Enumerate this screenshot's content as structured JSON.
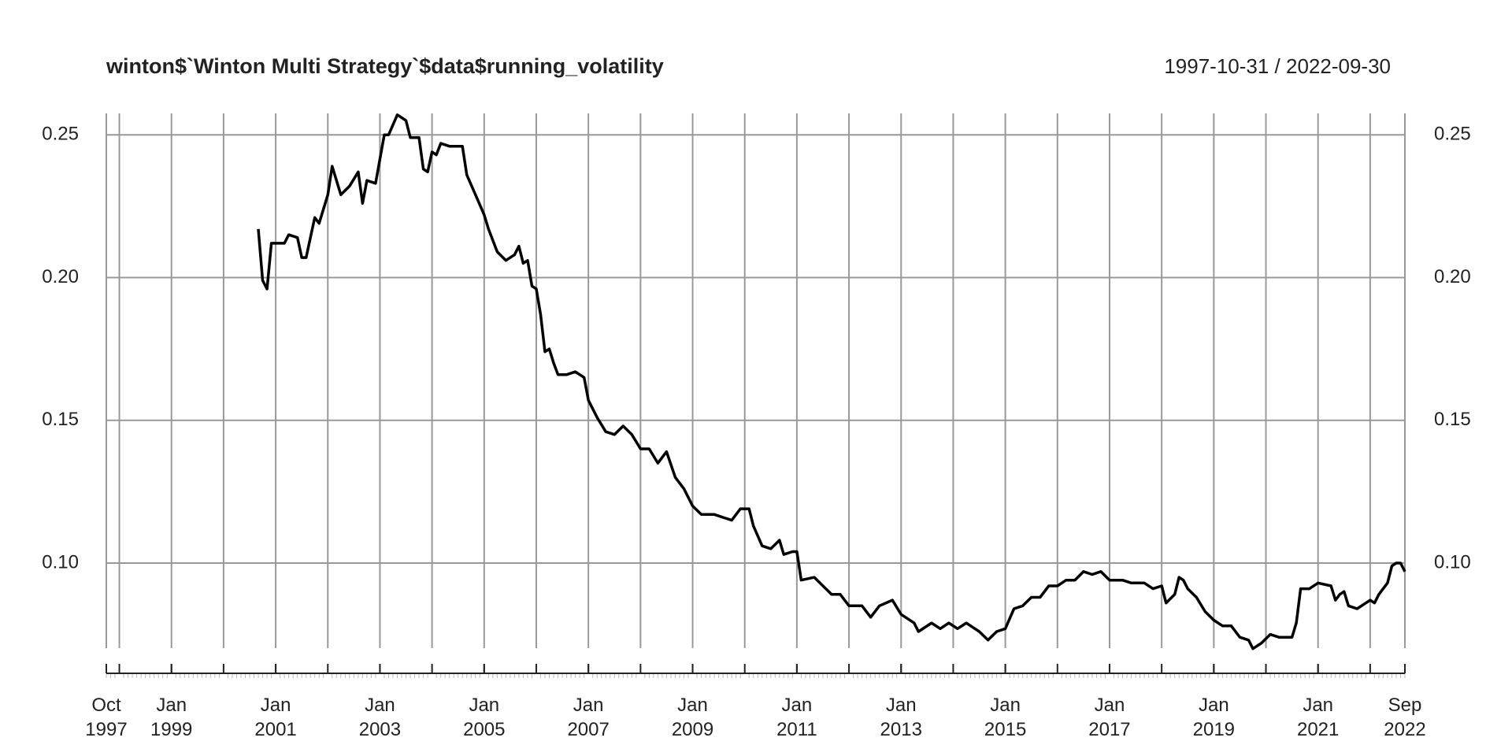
{
  "chart_data": {
    "type": "line",
    "title": "winton$`Winton Multi Strategy`$data$running_volatility",
    "subtitle": "1997-10-31 / 2022-09-30",
    "color": "#000000",
    "grid": true,
    "xlim": [
      "1997-10",
      "2022-09"
    ],
    "ylim": [
      0.0702,
      0.2575
    ],
    "yticks": [
      {
        "value": 0.1,
        "label": "0.10"
      },
      0.15,
      {
        "value": 0.2,
        "label": "0.20"
      },
      0.25
    ],
    "xticks": [
      {
        "value": "1997-10",
        "label": "Oct 1997"
      },
      {
        "value": "1999-01",
        "label": "Jan 1999"
      },
      {
        "value": "2001-01",
        "label": "Jan 2001"
      },
      {
        "value": "2003-01",
        "label": "Jan 2003"
      },
      {
        "value": "2005-01",
        "label": "Jan 2005"
      },
      {
        "value": "2007-01",
        "label": "Jan 2007"
      },
      {
        "value": "2009-01",
        "label": "Jan 2009"
      },
      {
        "value": "2011-01",
        "label": "Jan 2011"
      },
      {
        "value": "2013-01",
        "label": "Jan 2013"
      },
      {
        "value": "2015-01",
        "label": "Jan 2015"
      },
      {
        "value": "2017-01",
        "label": "Jan 2017"
      },
      {
        "value": "2019-01",
        "label": "Jan 2019"
      },
      {
        "value": "2021-01",
        "label": "Jan 2021"
      },
      {
        "value": "2022-09",
        "label": "Sep 2022"
      }
    ],
    "x": [
      "2000-09",
      "2000-10",
      "2000-11",
      "2000-12",
      "2001-03",
      "2001-04",
      "2001-06",
      "2001-07",
      "2001-08",
      "2001-10",
      "2001-11",
      "2002-01",
      "2002-02",
      "2002-04",
      "2002-06",
      "2002-08",
      "2002-09",
      "2002-10",
      "2002-12",
      "2003-02",
      "2003-03",
      "2003-05",
      "2003-06",
      "2003-07",
      "2003-08",
      "2003-10",
      "2003-11",
      "2003-12",
      "2004-01",
      "2004-02",
      "2004-03",
      "2004-05",
      "2004-08",
      "2004-09",
      "2004-11",
      "2005-01",
      "2005-02",
      "2005-04",
      "2005-06",
      "2005-08",
      "2005-09",
      "2005-10",
      "2005-11",
      "2005-12",
      "2006-01",
      "2006-02",
      "2006-03",
      "2006-04",
      "2006-05",
      "2006-06",
      "2006-08",
      "2006-10",
      "2006-12",
      "2007-01",
      "2007-03",
      "2007-05",
      "2007-07",
      "2007-09",
      "2007-11",
      "2008-01",
      "2008-03",
      "2008-05",
      "2008-07",
      "2008-09",
      "2008-11",
      "2009-01",
      "2009-03",
      "2009-06",
      "2009-08",
      "2009-10",
      "2009-12",
      "2010-02",
      "2010-03",
      "2010-05",
      "2010-07",
      "2010-09",
      "2010-10",
      "2010-12",
      "2011-01",
      "2011-02",
      "2011-05",
      "2011-07",
      "2011-09",
      "2011-11",
      "2012-01",
      "2012-04",
      "2012-06",
      "2012-08",
      "2012-11",
      "2013-01",
      "2013-04",
      "2013-05",
      "2013-08",
      "2013-10",
      "2013-12",
      "2014-02",
      "2014-04",
      "2014-07",
      "2014-09",
      "2014-11",
      "2015-01",
      "2015-03",
      "2015-05",
      "2015-07",
      "2015-09",
      "2015-11",
      "2016-01",
      "2016-03",
      "2016-05",
      "2016-07",
      "2016-09",
      "2016-11",
      "2017-01",
      "2017-04",
      "2017-06",
      "2017-09",
      "2017-11",
      "2018-01",
      "2018-02",
      "2018-04",
      "2018-05",
      "2018-06",
      "2018-07",
      "2018-09",
      "2018-11",
      "2019-01",
      "2019-03",
      "2019-05",
      "2019-07",
      "2019-09",
      "2019-10",
      "2019-12",
      "2020-02",
      "2020-04",
      "2020-07",
      "2020-08",
      "2020-09",
      "2020-11",
      "2021-01",
      "2021-04",
      "2021-05",
      "2021-06",
      "2021-07",
      "2021-08",
      "2021-10",
      "2021-12",
      "2022-01",
      "2022-02",
      "2022-03",
      "2022-04",
      "2022-05",
      "2022-06",
      "2022-07",
      "2022-08",
      "2022-09"
    ],
    "values": [
      0.217,
      0.199,
      0.196,
      0.212,
      0.212,
      0.215,
      0.214,
      0.207,
      0.207,
      0.221,
      0.219,
      0.229,
      0.239,
      0.229,
      0.232,
      0.237,
      0.226,
      0.234,
      0.233,
      0.25,
      0.25,
      0.257,
      0.256,
      0.255,
      0.249,
      0.249,
      0.238,
      0.237,
      0.244,
      0.243,
      0.247,
      0.246,
      0.246,
      0.236,
      0.229,
      0.222,
      0.217,
      0.209,
      0.206,
      0.208,
      0.211,
      0.205,
      0.206,
      0.197,
      0.196,
      0.187,
      0.174,
      0.175,
      0.17,
      0.166,
      0.166,
      0.167,
      0.165,
      0.157,
      0.151,
      0.146,
      0.145,
      0.148,
      0.145,
      0.14,
      0.14,
      0.135,
      0.139,
      0.13,
      0.126,
      0.12,
      0.117,
      0.117,
      0.116,
      0.115,
      0.119,
      0.119,
      0.113,
      0.106,
      0.105,
      0.108,
      0.103,
      0.104,
      0.104,
      0.094,
      0.095,
      0.092,
      0.089,
      0.089,
      0.085,
      0.085,
      0.081,
      0.085,
      0.087,
      0.082,
      0.079,
      0.076,
      0.079,
      0.077,
      0.079,
      0.077,
      0.079,
      0.076,
      0.073,
      0.076,
      0.077,
      0.084,
      0.085,
      0.088,
      0.088,
      0.092,
      0.092,
      0.094,
      0.094,
      0.097,
      0.096,
      0.097,
      0.094,
      0.094,
      0.093,
      0.093,
      0.091,
      0.092,
      0.086,
      0.089,
      0.095,
      0.094,
      0.091,
      0.088,
      0.083,
      0.08,
      0.078,
      0.078,
      0.074,
      0.073,
      0.07,
      0.072,
      0.075,
      0.074,
      0.074,
      0.079,
      0.091,
      0.091,
      0.093,
      0.092,
      0.087,
      0.089,
      0.09,
      0.085,
      0.084,
      0.086,
      0.087,
      0.086,
      0.089,
      0.091,
      0.093,
      0.099,
      0.1,
      0.1,
      0.097
    ]
  }
}
